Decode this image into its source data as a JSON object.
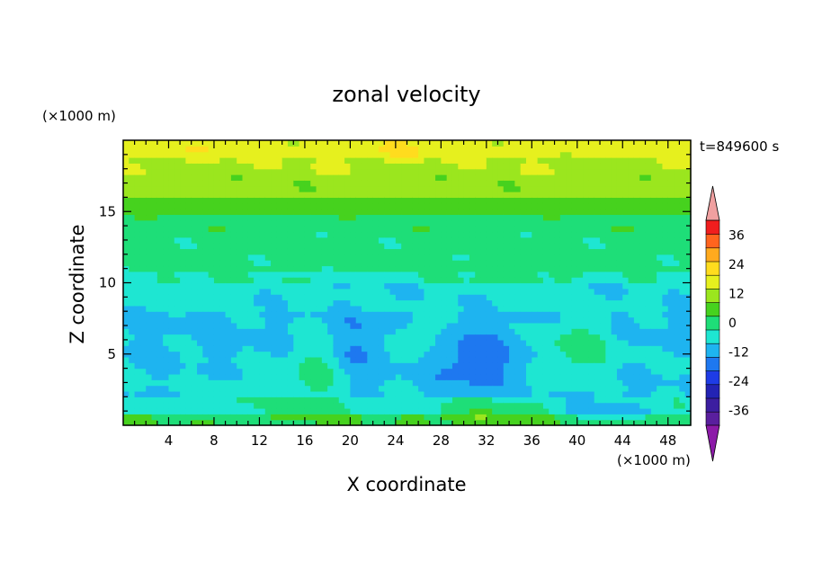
{
  "chart_data": {
    "type": "heatmap",
    "title": "zonal velocity",
    "xlabel": "X coordinate",
    "ylabel": "Z coordinate",
    "x_unit_label": "(×1000 m)",
    "y_unit_label": "(×1000 m)",
    "time_label": "t=849600 s",
    "xlim": [
      0,
      50
    ],
    "ylim": [
      0,
      20
    ],
    "x_ticks": [
      4,
      8,
      12,
      16,
      20,
      24,
      28,
      32,
      36,
      40,
      44,
      48
    ],
    "x_tick_labels": [
      "4",
      "8",
      "12",
      "16",
      "20",
      "24",
      "28",
      "32",
      "36",
      "40",
      "44",
      "48"
    ],
    "y_ticks": [
      5,
      10,
      15
    ],
    "y_tick_labels": [
      "5",
      "10",
      "15"
    ],
    "colorbar": {
      "levels": [
        -42,
        -36,
        -30,
        -24,
        -18,
        -12,
        -6,
        0,
        6,
        12,
        18,
        24,
        30,
        36,
        42
      ],
      "colors": [
        "#5a1f9e",
        "#3c1ea0",
        "#2323b4",
        "#1e3ce6",
        "#1e78f0",
        "#1eb4f0",
        "#1ee6d2",
        "#1ede78",
        "#46d21e",
        "#9be61e",
        "#e6f01e",
        "#ffdc1e",
        "#ffaa1e",
        "#ff641e",
        "#f01e1e"
      ],
      "under_color": "#8c1aa8",
      "over_color": "#f0a0a0",
      "tick_labels": [
        "36",
        "24",
        "12",
        "0",
        "-12",
        "-24",
        "-36"
      ],
      "tick_values": [
        36,
        24,
        12,
        0,
        -12,
        -24,
        -36
      ]
    },
    "grid": false,
    "legend": "colorbar-right"
  }
}
